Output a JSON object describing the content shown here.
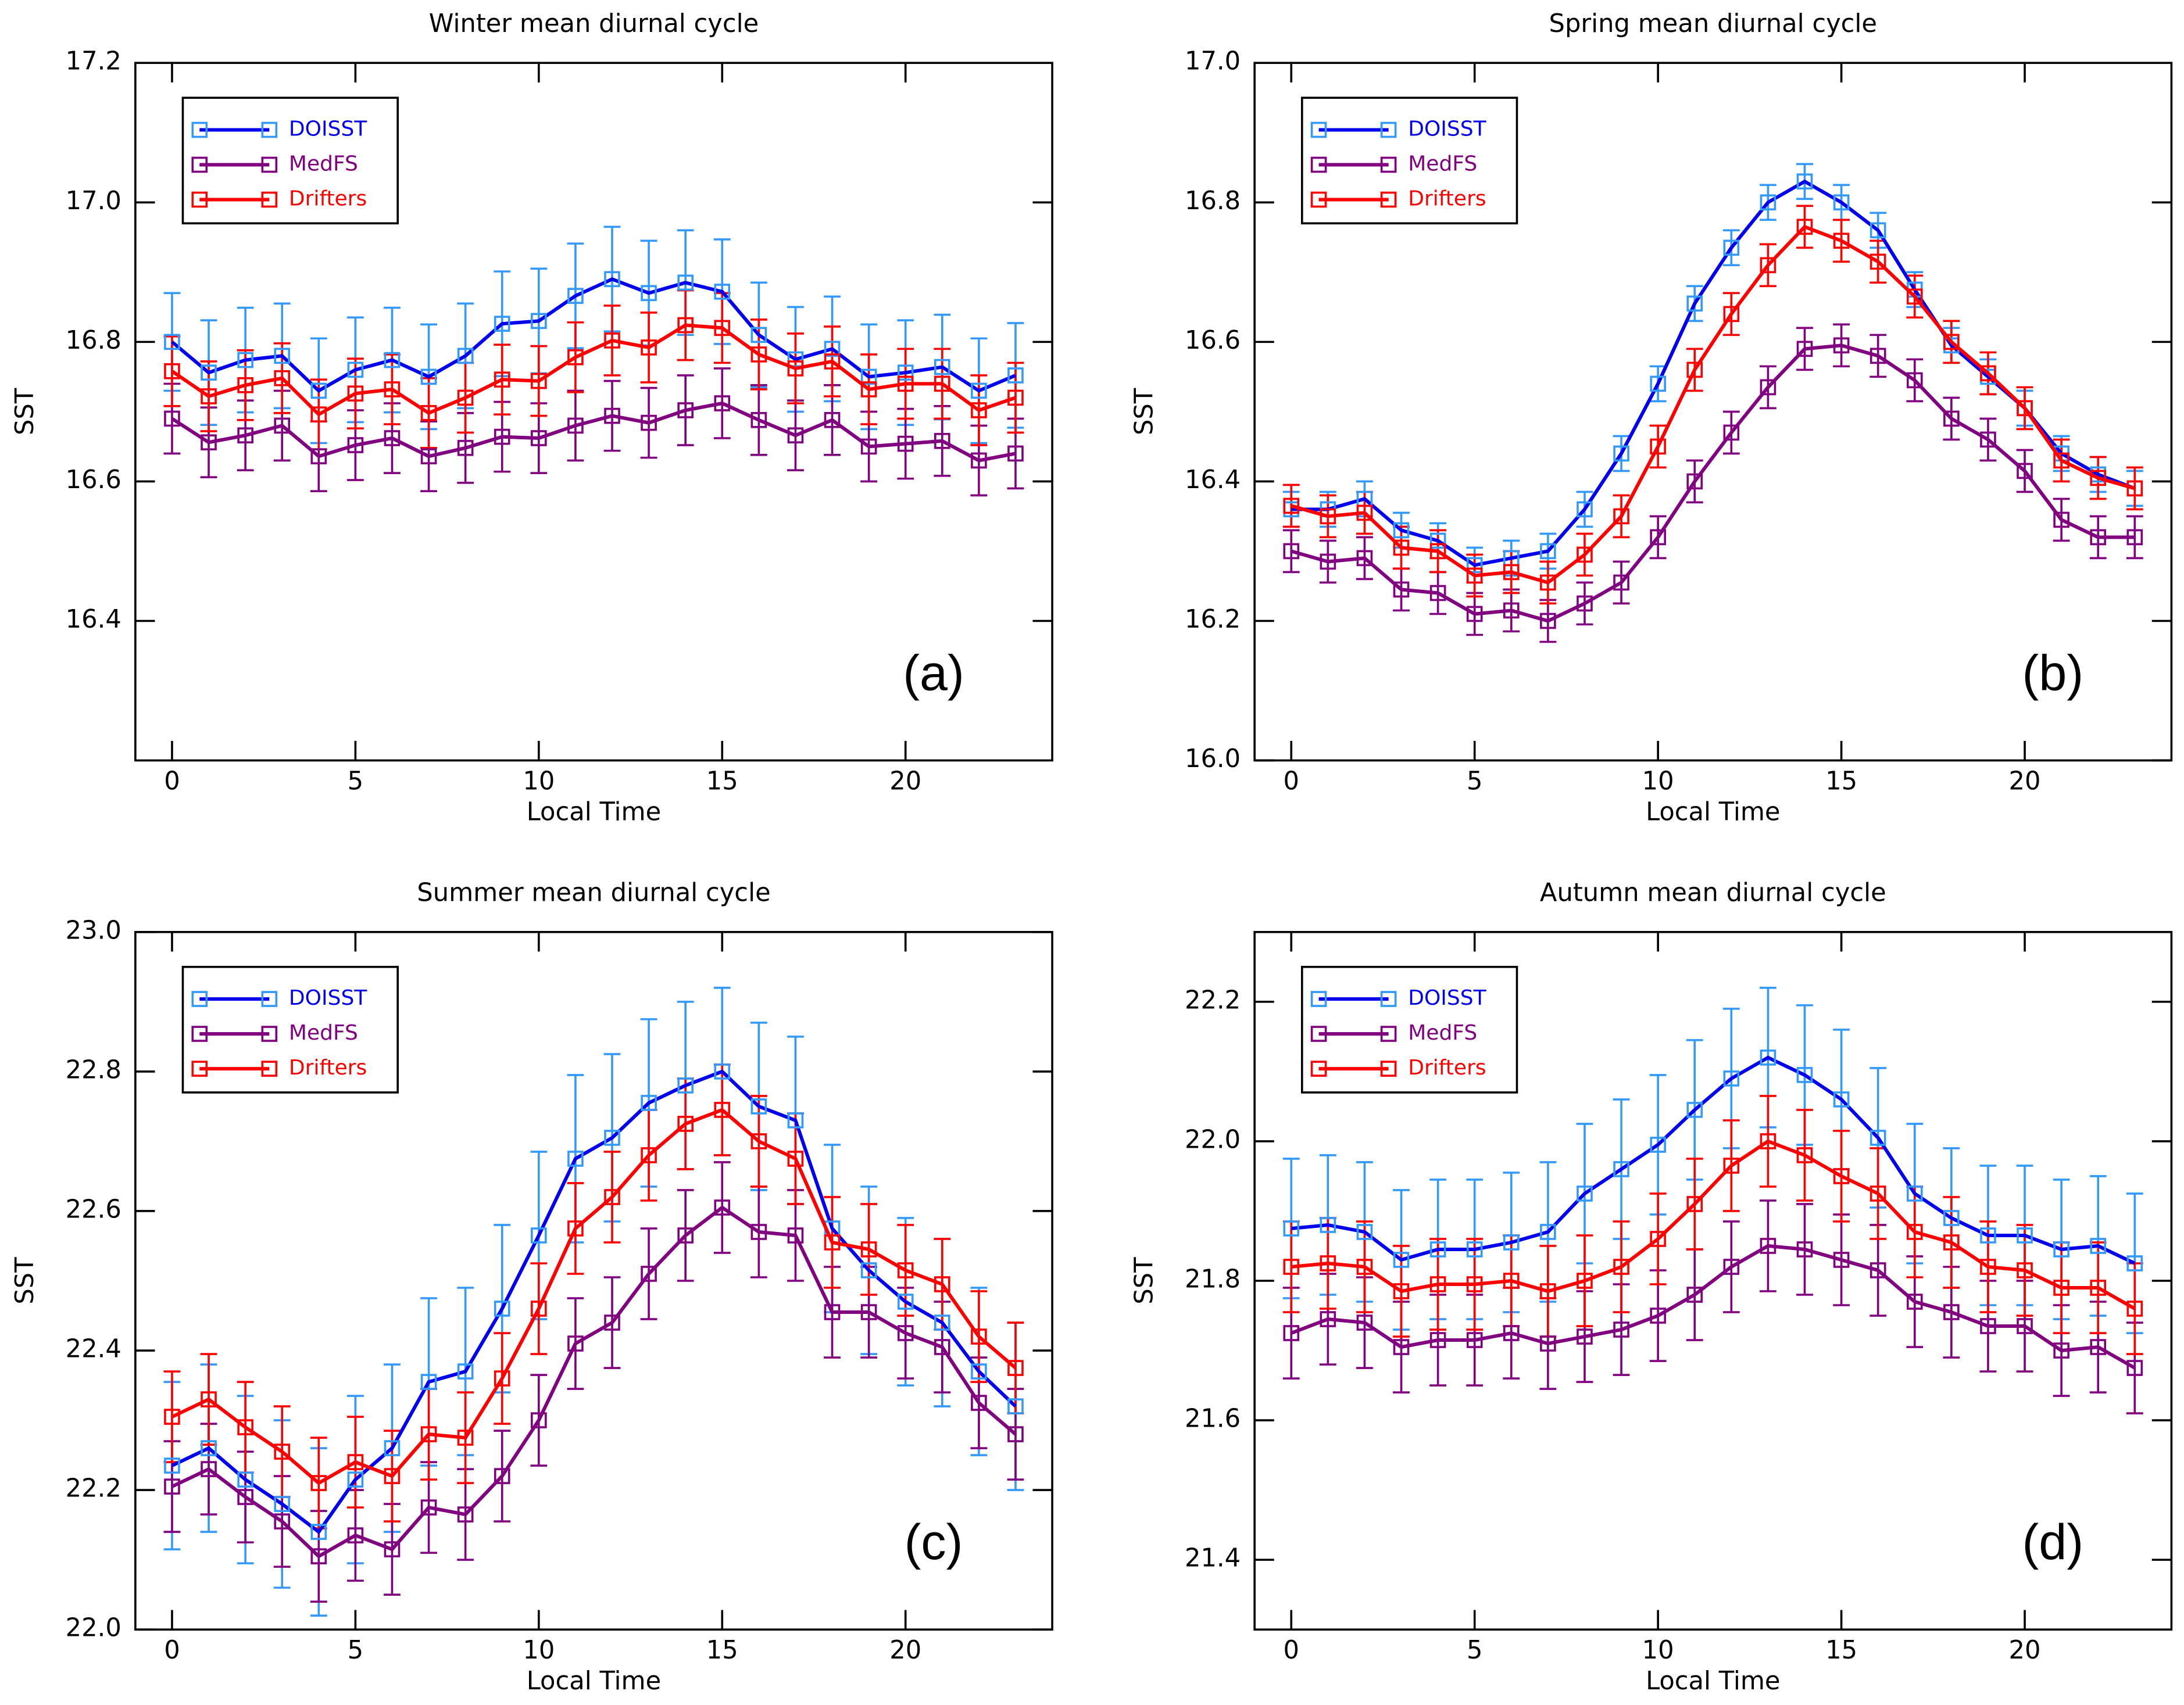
{
  "chart_data": [
    {
      "type": "line",
      "title": "Winter mean diurnal cycle",
      "panel_label": "(a)",
      "xlabel": "Local Time",
      "ylabel": "SST",
      "x": [
        0,
        1,
        2,
        3,
        4,
        5,
        6,
        7,
        8,
        9,
        10,
        11,
        12,
        13,
        14,
        15,
        16,
        17,
        18,
        19,
        20,
        21,
        22,
        23
      ],
      "xlim": [
        -1,
        24
      ],
      "xticks": [
        0,
        5,
        10,
        15,
        20
      ],
      "ylim": [
        16.2,
        17.2
      ],
      "yticks": [
        16.4,
        16.6,
        16.8,
        17.0,
        17.2
      ],
      "series": [
        {
          "name": "DOISST",
          "color": "#0000ee",
          "marker_color": "#3399ff",
          "values": [
            16.8,
            16.756,
            16.774,
            16.78,
            16.73,
            16.76,
            16.774,
            16.75,
            16.78,
            16.826,
            16.83,
            16.866,
            16.89,
            16.87,
            16.885,
            16.872,
            16.81,
            16.775,
            16.79,
            16.75,
            16.756,
            16.764,
            16.73,
            16.752
          ],
          "errors": [
            0.07,
            0.075,
            0.075,
            0.075,
            0.075,
            0.075,
            0.075,
            0.075,
            0.075,
            0.075,
            0.075,
            0.075,
            0.075,
            0.075,
            0.075,
            0.075,
            0.075,
            0.075,
            0.075,
            0.075,
            0.075,
            0.075,
            0.075,
            0.075
          ]
        },
        {
          "name": "MedFS",
          "color": "#800080",
          "marker_color": "#800080",
          "values": [
            16.69,
            16.656,
            16.666,
            16.68,
            16.636,
            16.652,
            16.662,
            16.636,
            16.648,
            16.664,
            16.662,
            16.68,
            16.694,
            16.684,
            16.702,
            16.712,
            16.688,
            16.666,
            16.688,
            16.65,
            16.654,
            16.658,
            16.63,
            16.64
          ],
          "errors": [
            0.05,
            0.05,
            0.05,
            0.05,
            0.05,
            0.05,
            0.05,
            0.05,
            0.05,
            0.05,
            0.05,
            0.05,
            0.05,
            0.05,
            0.05,
            0.05,
            0.05,
            0.05,
            0.05,
            0.05,
            0.05,
            0.05,
            0.05,
            0.05
          ]
        },
        {
          "name": "Drifters",
          "color": "#ff0000",
          "marker_color": "#ff0000",
          "values": [
            16.758,
            16.722,
            16.738,
            16.748,
            16.696,
            16.726,
            16.732,
            16.698,
            16.72,
            16.746,
            16.744,
            16.778,
            16.802,
            16.792,
            16.824,
            16.82,
            16.782,
            16.762,
            16.772,
            16.732,
            16.74,
            16.74,
            16.702,
            16.72
          ],
          "errors": [
            0.05,
            0.05,
            0.05,
            0.05,
            0.05,
            0.05,
            0.05,
            0.05,
            0.05,
            0.05,
            0.05,
            0.05,
            0.05,
            0.05,
            0.05,
            0.05,
            0.05,
            0.05,
            0.05,
            0.05,
            0.05,
            0.05,
            0.05,
            0.05
          ]
        }
      ]
    },
    {
      "type": "line",
      "title": "Spring mean diurnal cycle",
      "panel_label": "(b)",
      "xlabel": "Local Time",
      "ylabel": "SST",
      "x": [
        0,
        1,
        2,
        3,
        4,
        5,
        6,
        7,
        8,
        9,
        10,
        11,
        12,
        13,
        14,
        15,
        16,
        17,
        18,
        19,
        20,
        21,
        22,
        23
      ],
      "xlim": [
        -1,
        24
      ],
      "xticks": [
        0,
        5,
        10,
        15,
        20
      ],
      "ylim": [
        16.0,
        17.0
      ],
      "yticks": [
        16.0,
        16.2,
        16.4,
        16.6,
        16.8,
        17.0
      ],
      "series": [
        {
          "name": "DOISST",
          "color": "#0000ee",
          "marker_color": "#3399ff",
          "values": [
            16.36,
            16.36,
            16.375,
            16.33,
            16.315,
            16.28,
            16.29,
            16.3,
            16.36,
            16.44,
            16.54,
            16.655,
            16.735,
            16.8,
            16.83,
            16.8,
            16.76,
            16.675,
            16.595,
            16.55,
            16.505,
            16.44,
            16.41,
            16.39
          ],
          "errors": [
            0.025,
            0.025,
            0.025,
            0.025,
            0.025,
            0.025,
            0.025,
            0.025,
            0.025,
            0.025,
            0.025,
            0.025,
            0.025,
            0.025,
            0.025,
            0.025,
            0.025,
            0.025,
            0.025,
            0.025,
            0.025,
            0.025,
            0.025,
            0.025
          ]
        },
        {
          "name": "MedFS",
          "color": "#800080",
          "marker_color": "#800080",
          "values": [
            16.3,
            16.285,
            16.29,
            16.245,
            16.24,
            16.21,
            16.215,
            16.2,
            16.225,
            16.255,
            16.32,
            16.4,
            16.47,
            16.535,
            16.59,
            16.595,
            16.58,
            16.545,
            16.49,
            16.46,
            16.415,
            16.345,
            16.32,
            16.32
          ],
          "errors": [
            0.03,
            0.03,
            0.03,
            0.03,
            0.03,
            0.03,
            0.03,
            0.03,
            0.03,
            0.03,
            0.03,
            0.03,
            0.03,
            0.03,
            0.03,
            0.03,
            0.03,
            0.03,
            0.03,
            0.03,
            0.03,
            0.03,
            0.03,
            0.03
          ]
        },
        {
          "name": "Drifters",
          "color": "#ff0000",
          "marker_color": "#ff0000",
          "values": [
            16.365,
            16.35,
            16.355,
            16.305,
            16.3,
            16.265,
            16.27,
            16.255,
            16.295,
            16.35,
            16.45,
            16.56,
            16.64,
            16.71,
            16.765,
            16.745,
            16.715,
            16.665,
            16.6,
            16.555,
            16.505,
            16.43,
            16.405,
            16.39
          ],
          "errors": [
            0.03,
            0.03,
            0.03,
            0.03,
            0.03,
            0.03,
            0.03,
            0.03,
            0.03,
            0.03,
            0.03,
            0.03,
            0.03,
            0.03,
            0.03,
            0.03,
            0.03,
            0.03,
            0.03,
            0.03,
            0.03,
            0.03,
            0.03,
            0.03
          ]
        }
      ]
    },
    {
      "type": "line",
      "title": "Summer mean diurnal cycle",
      "panel_label": "(c)",
      "xlabel": "Local Time",
      "ylabel": "SST",
      "x": [
        0,
        1,
        2,
        3,
        4,
        5,
        6,
        7,
        8,
        9,
        10,
        11,
        12,
        13,
        14,
        15,
        16,
        17,
        18,
        19,
        20,
        21,
        22,
        23
      ],
      "xlim": [
        -1,
        24
      ],
      "xticks": [
        0,
        5,
        10,
        15,
        20
      ],
      "ylim": [
        22.0,
        23.0
      ],
      "yticks": [
        22.0,
        22.2,
        22.4,
        22.6,
        22.8,
        23.0
      ],
      "series": [
        {
          "name": "DOISST",
          "color": "#0000ee",
          "marker_color": "#3399ff",
          "values": [
            22.235,
            22.26,
            22.215,
            22.18,
            22.14,
            22.215,
            22.26,
            22.355,
            22.37,
            22.46,
            22.565,
            22.675,
            22.705,
            22.755,
            22.78,
            22.8,
            22.75,
            22.73,
            22.575,
            22.515,
            22.47,
            22.44,
            22.37,
            22.32
          ],
          "errors": [
            0.12,
            0.12,
            0.12,
            0.12,
            0.12,
            0.12,
            0.12,
            0.12,
            0.12,
            0.12,
            0.12,
            0.12,
            0.12,
            0.12,
            0.12,
            0.12,
            0.12,
            0.12,
            0.12,
            0.12,
            0.12,
            0.12,
            0.12,
            0.12
          ]
        },
        {
          "name": "MedFS",
          "color": "#800080",
          "marker_color": "#800080",
          "values": [
            22.205,
            22.23,
            22.19,
            22.155,
            22.105,
            22.135,
            22.115,
            22.175,
            22.165,
            22.22,
            22.3,
            22.41,
            22.44,
            22.51,
            22.565,
            22.605,
            22.57,
            22.565,
            22.455,
            22.455,
            22.425,
            22.405,
            22.325,
            22.28
          ],
          "errors": [
            0.065,
            0.065,
            0.065,
            0.065,
            0.065,
            0.065,
            0.065,
            0.065,
            0.065,
            0.065,
            0.065,
            0.065,
            0.065,
            0.065,
            0.065,
            0.065,
            0.065,
            0.065,
            0.065,
            0.065,
            0.065,
            0.065,
            0.065,
            0.065
          ]
        },
        {
          "name": "Drifters",
          "color": "#ff0000",
          "marker_color": "#ff0000",
          "values": [
            22.305,
            22.33,
            22.29,
            22.255,
            22.21,
            22.24,
            22.22,
            22.28,
            22.275,
            22.36,
            22.46,
            22.575,
            22.62,
            22.68,
            22.725,
            22.745,
            22.7,
            22.675,
            22.555,
            22.545,
            22.515,
            22.495,
            22.42,
            22.375
          ],
          "errors": [
            0.065,
            0.065,
            0.065,
            0.065,
            0.065,
            0.065,
            0.065,
            0.065,
            0.065,
            0.065,
            0.065,
            0.065,
            0.065,
            0.065,
            0.065,
            0.065,
            0.065,
            0.065,
            0.065,
            0.065,
            0.065,
            0.065,
            0.065,
            0.065
          ]
        }
      ]
    },
    {
      "type": "line",
      "title": "Autumn mean diurnal cycle",
      "panel_label": "(d)",
      "xlabel": "Local Time",
      "ylabel": "SST",
      "x": [
        0,
        1,
        2,
        3,
        4,
        5,
        6,
        7,
        8,
        9,
        10,
        11,
        12,
        13,
        14,
        15,
        16,
        17,
        18,
        19,
        20,
        21,
        22,
        23
      ],
      "xlim": [
        -1,
        24
      ],
      "xticks": [
        0,
        5,
        10,
        15,
        20
      ],
      "ylim": [
        21.3,
        22.3
      ],
      "yticks": [
        21.4,
        21.6,
        21.8,
        22.0,
        22.2
      ],
      "series": [
        {
          "name": "DOISST",
          "color": "#0000ee",
          "marker_color": "#3399ff",
          "values": [
            21.875,
            21.88,
            21.87,
            21.83,
            21.845,
            21.845,
            21.855,
            21.87,
            21.925,
            21.96,
            21.995,
            22.045,
            22.09,
            22.12,
            22.095,
            22.06,
            22.005,
            21.925,
            21.89,
            21.865,
            21.865,
            21.845,
            21.85,
            21.825
          ],
          "errors": [
            0.1,
            0.1,
            0.1,
            0.1,
            0.1,
            0.1,
            0.1,
            0.1,
            0.1,
            0.1,
            0.1,
            0.1,
            0.1,
            0.1,
            0.1,
            0.1,
            0.1,
            0.1,
            0.1,
            0.1,
            0.1,
            0.1,
            0.1,
            0.1
          ]
        },
        {
          "name": "MedFS",
          "color": "#800080",
          "marker_color": "#800080",
          "values": [
            21.725,
            21.745,
            21.74,
            21.705,
            21.715,
            21.715,
            21.725,
            21.71,
            21.72,
            21.73,
            21.75,
            21.78,
            21.82,
            21.85,
            21.845,
            21.83,
            21.815,
            21.77,
            21.755,
            21.735,
            21.735,
            21.7,
            21.705,
            21.675
          ],
          "errors": [
            0.065,
            0.065,
            0.065,
            0.065,
            0.065,
            0.065,
            0.065,
            0.065,
            0.065,
            0.065,
            0.065,
            0.065,
            0.065,
            0.065,
            0.065,
            0.065,
            0.065,
            0.065,
            0.065,
            0.065,
            0.065,
            0.065,
            0.065,
            0.065
          ]
        },
        {
          "name": "Drifters",
          "color": "#ff0000",
          "marker_color": "#ff0000",
          "values": [
            21.82,
            21.825,
            21.82,
            21.785,
            21.795,
            21.795,
            21.8,
            21.785,
            21.8,
            21.82,
            21.86,
            21.91,
            21.965,
            22.0,
            21.98,
            21.95,
            21.925,
            21.87,
            21.855,
            21.82,
            21.815,
            21.79,
            21.79,
            21.76
          ],
          "errors": [
            0.065,
            0.065,
            0.065,
            0.065,
            0.065,
            0.065,
            0.065,
            0.065,
            0.065,
            0.065,
            0.065,
            0.065,
            0.065,
            0.065,
            0.065,
            0.065,
            0.065,
            0.065,
            0.065,
            0.065,
            0.065,
            0.065,
            0.065,
            0.065
          ]
        }
      ]
    }
  ]
}
